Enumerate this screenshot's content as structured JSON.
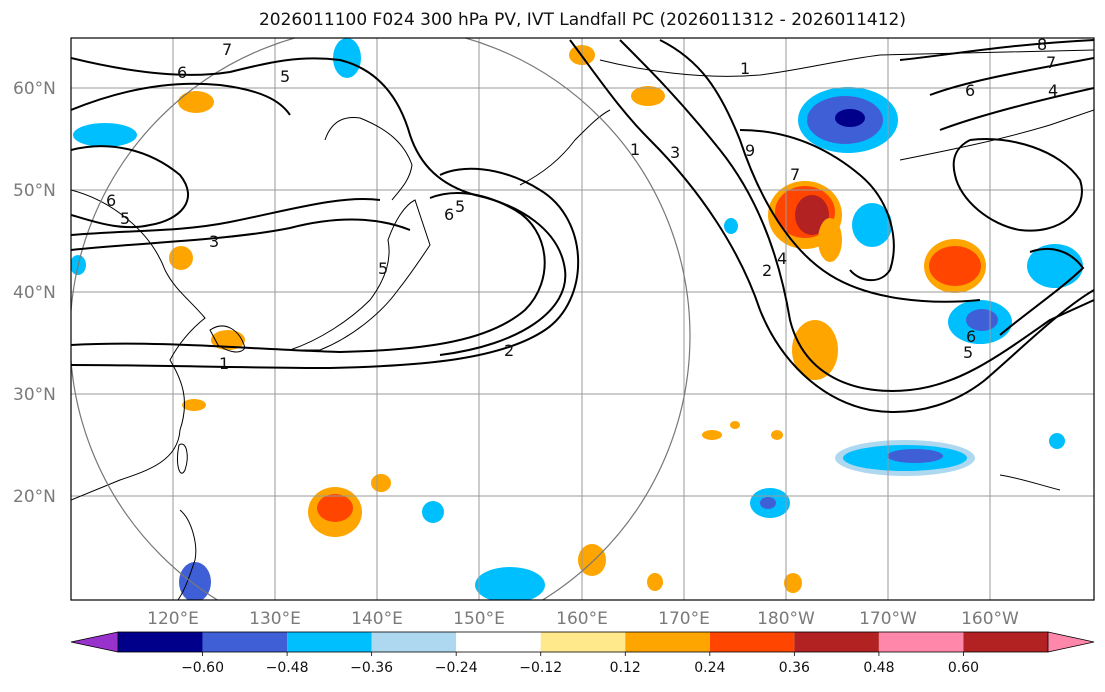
{
  "title": "2026011100 F024 300 hPa PV, IVT Landfall PC (2026011312 - 2026011412)",
  "lat_labels": [
    "60°N",
    "50°N",
    "40°N",
    "30°N",
    "20°N"
  ],
  "lon_labels": [
    "120°E",
    "130°E",
    "140°E",
    "150°E",
    "160°E",
    "170°E",
    "180°W",
    "170°W",
    "160°W"
  ],
  "contour_labels": [
    "7",
    "6",
    "5",
    "6",
    "5",
    "3",
    "1",
    "5",
    "6",
    "2",
    "1",
    "1",
    "3",
    "9",
    "2",
    "7",
    "4",
    "6",
    "5",
    "4",
    "8",
    "7",
    "6",
    "5"
  ],
  "colorbar": {
    "ticks": [
      "−0.60",
      "−0.48",
      "−0.36",
      "−0.24",
      "−0.12",
      "0.12",
      "0.24",
      "0.36",
      "0.48",
      "0.60"
    ],
    "colors": [
      "#9932cc",
      "#00008b",
      "#3f5fd6",
      "#00bfff",
      "#add8f0",
      "#ffffff",
      "#ffe98a",
      "#ffa500",
      "#ff4500",
      "#b22222",
      "#ff88aa"
    ]
  }
}
